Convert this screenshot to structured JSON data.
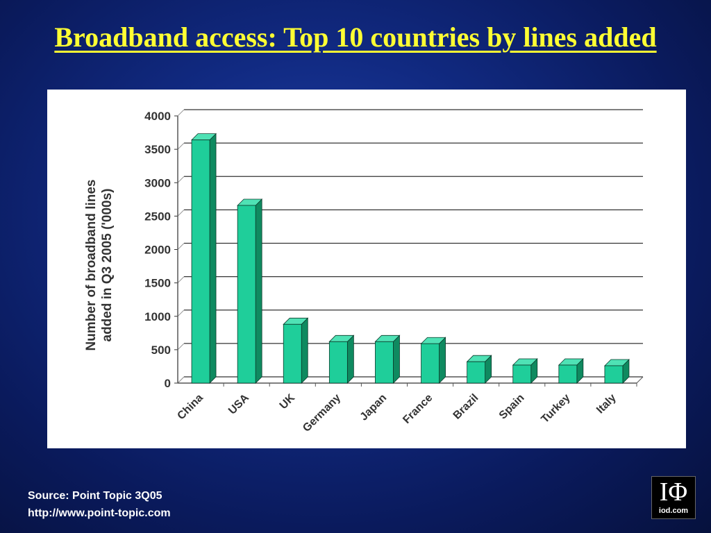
{
  "slide": {
    "title": "Broadband access: Top 10 countries by lines added",
    "source_line": "Source: Point Topic 3Q05",
    "url_line": "http://www.point-topic.com",
    "logo_mark": "IΦ",
    "logo_text": "iod.com"
  },
  "colors": {
    "background": "#0a1a5c",
    "title": "#ffff33",
    "bar": "#1fce9a",
    "bar_side": "#0f8a60",
    "grid": "#333333"
  },
  "chart_data": {
    "type": "bar",
    "title": "",
    "xlabel": "",
    "ylabel": "Number of broadband lines added in Q3 2005 ('000s)",
    "ylabel_lines": [
      "Number of broadband lines",
      "added in Q3 2005 ('000s)"
    ],
    "categories": [
      "China",
      "USA",
      "UK",
      "Germany",
      "Japan",
      "France",
      "Brazil",
      "Spain",
      "Turkey",
      "Italy"
    ],
    "values": [
      3640,
      2660,
      880,
      620,
      620,
      590,
      320,
      270,
      270,
      260
    ],
    "ylim": [
      0,
      4000
    ],
    "yticks": [
      "0",
      "500",
      "1000",
      "1500",
      "2000",
      "2500",
      "3000",
      "3500",
      "4000"
    ],
    "grid": true,
    "legend": "none"
  }
}
